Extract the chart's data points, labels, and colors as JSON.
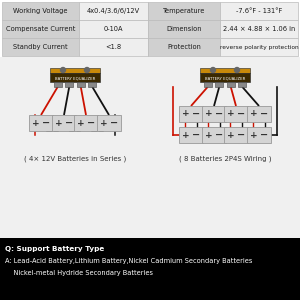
{
  "table_data": [
    [
      "Working Voltage",
      "4x0.4/3.6/6/12V",
      "Temperature",
      "-7.6°F - 131°F"
    ],
    [
      "Compensate Current",
      "0-10A",
      "Dimension",
      "2.44 × 4.88 × 1.06 in"
    ],
    [
      "Standby Current",
      "<1.8",
      "Protection",
      "reverse polarity protection"
    ]
  ],
  "label1": "( 4× 12V Batteries in Series )",
  "label2": "( 8 Batteries 2P4S Wiring )",
  "footer_q": "Q: Support Battery Type",
  "footer_a1": "A: Lead-Acid Battery,Lithium Battery,Nickel Cadmium Secondary Batteries",
  "footer_a2": "    Nickel-metal Hydride Secondary Batteries",
  "device_color": "#3a2800",
  "device_top_color": "#c8890a",
  "wire_red": "#cc1100",
  "wire_black": "#111111",
  "battery_color": "#d4d4d4",
  "battery_border": "#999999",
  "table_bg_light": "#eeeeee",
  "table_bg_dark": "#d0d0d0",
  "table_border": "#bbbbbb",
  "footer_bg": "#000000",
  "diagram_bg": "#f0f0f0"
}
